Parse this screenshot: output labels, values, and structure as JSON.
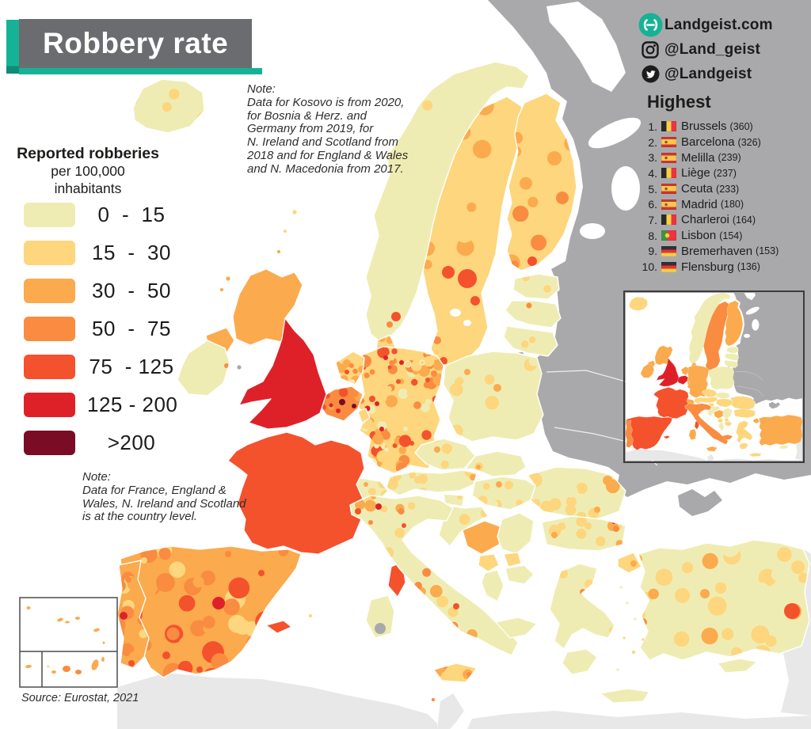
{
  "title": {
    "text": "Robbery rate"
  },
  "branding": {
    "site": "Landgeist.com",
    "instagram": "@Land_geist",
    "twitter": "@Landgeist"
  },
  "highest": {
    "heading": "Highest",
    "items": [
      {
        "rank": "1.",
        "flag": "belgium",
        "name": "Brussels",
        "value": "(360)"
      },
      {
        "rank": "2.",
        "flag": "spain",
        "name": "Barcelona",
        "value": "(326)"
      },
      {
        "rank": "3.",
        "flag": "spain",
        "name": "Melilla",
        "value": "(239)"
      },
      {
        "rank": "4.",
        "flag": "belgium",
        "name": "Liège",
        "value": "(237)"
      },
      {
        "rank": "5.",
        "flag": "spain",
        "name": "Ceuta",
        "value": "(233)"
      },
      {
        "rank": "6.",
        "flag": "spain",
        "name": "Madrid",
        "value": "(180)"
      },
      {
        "rank": "7.",
        "flag": "belgium",
        "name": "Charleroi",
        "value": "(164)"
      },
      {
        "rank": "8.",
        "flag": "portugal",
        "name": "Lisbon",
        "value": "(154)"
      },
      {
        "rank": "9.",
        "flag": "germany",
        "name": "Bremerhaven",
        "value": "(153)"
      },
      {
        "rank": "10.",
        "flag": "germany",
        "name": "Flensburg",
        "value": "(136)"
      }
    ]
  },
  "legend": {
    "title_line1": "Reported robberies",
    "title_line2": "per 100,000",
    "title_line3": "inhabitants",
    "items": [
      {
        "range": "0  -  15",
        "color": "c1"
      },
      {
        "range": "15  -  30",
        "color": "c2"
      },
      {
        "range": "30  -  50",
        "color": "c3"
      },
      {
        "range": "50  -  75",
        "color": "c4"
      },
      {
        "range": "75  - 125",
        "color": "c5"
      },
      {
        "range": "125 - 200",
        "color": "c6"
      },
      {
        "range": ">200",
        "color": "c7"
      }
    ]
  },
  "notes": {
    "top": "Note:\nData for Kosovo is from 2020,\nfor Bosnia & Herz. and\nGermany from 2019, for\nN. Ireland and Scotland from\n2018 and for England & Wales\nand N. Macedonia from 2017.",
    "left": "Note:\nData for France, England &\nWales, N. Ireland and Scotland\nis at the country level."
  },
  "source": "Source: Eurostat, 2021",
  "palette": {
    "c1": "#efecb3",
    "c2": "#fdd67d",
    "c3": "#fbaa4d",
    "c4": "#f98c41",
    "c5": "#f4512d",
    "c6": "#de2128",
    "c7": "#7a0c26",
    "nodata": "#a9a9ac",
    "non_europe": "#e8e8e8",
    "sea": "#ffffff",
    "teal": "#16b296",
    "title_bg": "#6b6c6f",
    "text": "#1c1c1a"
  },
  "map": {
    "regions": {
      "iceland": "c1",
      "norway": "c1",
      "sweden": "c2",
      "finland": "c2",
      "denmark": "c2",
      "estonia": "c1",
      "latvia": "c1",
      "lithuania": "c1",
      "kaliningrad": "nodata",
      "poland": "c1",
      "germany": "c2",
      "netherlands": "c2",
      "belgium": "c4",
      "luxembourg": "c2",
      "czechia": "c1",
      "austria": "c1",
      "switzerland": "c1",
      "slovakia": "c1",
      "hungary": "c1",
      "slovenia": "c1",
      "croatia": "c1",
      "bosnia": "c3",
      "serbia": "c1",
      "montenegro": "c2",
      "kosovo": "c2",
      "albania": "c1",
      "nmacedonia": "c1",
      "romania": "c1",
      "bulgaria": "c1",
      "greece": "c1",
      "peloponnese": "c1",
      "crete": "c1",
      "turkey_eu": "c2",
      "turkey": "c1",
      "cyprus": "c1",
      "france": "c5",
      "corsica": "c5",
      "balearics": "c5",
      "italy": "c1",
      "heel": "c1",
      "sicily": "c2",
      "sardinia": "c1",
      "spain": "c3",
      "portugal": "c3",
      "uk_scotland": "c3",
      "uk_england": "c6",
      "uk_ni": "c3",
      "ireland": "c1"
    },
    "inset_regions": {
      "iceland": "c2",
      "norway": "c1",
      "sweden": "c4",
      "finland": "c3",
      "denmark": "c3",
      "estonia": "c1",
      "latvia": "c1",
      "lithuania": "c1",
      "kaliningrad": "nodata",
      "poland": "c1",
      "germany": "c3",
      "netherlands": "c3",
      "belgium": "c6",
      "luxembourg": "c3",
      "czechia": "c2",
      "austria": "c2",
      "switzerland": "c3",
      "slovakia": "c1",
      "hungary": "c2",
      "slovenia": "c2",
      "croatia": "c1",
      "bosnia": "c3",
      "serbia": "c1",
      "montenegro": "c2",
      "kosovo": "c2",
      "albania": "c1",
      "nmacedonia": "c2",
      "romania": "c2",
      "bulgaria": "c2",
      "greece": "c2",
      "peloponnese": "c2",
      "crete": "c2",
      "turkey_eu": "c3",
      "turkey": "c3",
      "cyprus": "c1",
      "france": "c5",
      "corsica": "c5",
      "balearics": "c5",
      "italy": "c4",
      "heel": "c4",
      "sicily": "c3",
      "sardinia": "c3",
      "spain": "c5",
      "portugal": "c4",
      "uk_scotland": "c3",
      "uk_england": "c6",
      "uk_ni": "c3",
      "ireland": "c3"
    }
  }
}
